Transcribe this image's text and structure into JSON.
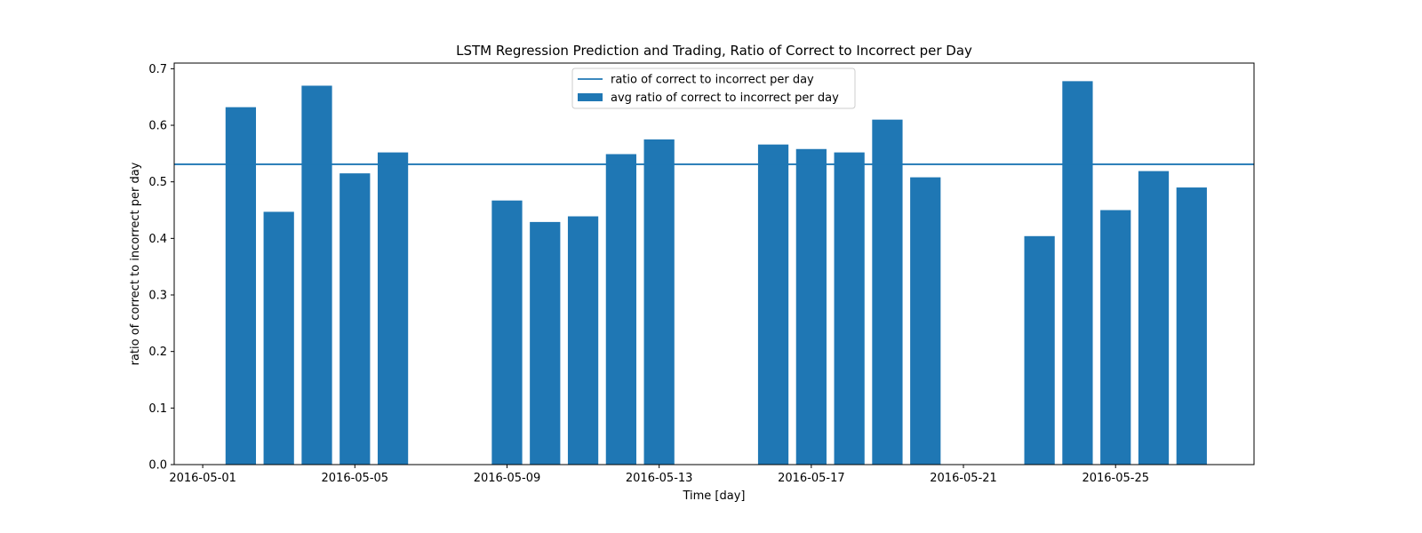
{
  "chart_data": {
    "type": "bar",
    "title": "LSTM Regression Prediction and Trading, Ratio of Correct to Incorrect per Day",
    "xlabel": "Time [day]",
    "ylabel": "ratio of correct to incorrect per day",
    "xlim": [
      "2016-04-30",
      "2016-05-29"
    ],
    "ylim": [
      0,
      0.71
    ],
    "xticks": [
      "2016-05-01",
      "2016-05-05",
      "2016-05-09",
      "2016-05-13",
      "2016-05-17",
      "2016-05-21",
      "2016-05-25"
    ],
    "yticks": [
      "0.0",
      "0.1",
      "0.2",
      "0.3",
      "0.4",
      "0.5",
      "0.6",
      "0.7"
    ],
    "grid": false,
    "legend_position": "upper center",
    "color": "#1f77b4",
    "series": [
      {
        "name": "avg ratio of correct to incorrect per day",
        "kind": "bar",
        "x": [
          "2016-05-02",
          "2016-05-03",
          "2016-05-04",
          "2016-05-05",
          "2016-05-06",
          "2016-05-09",
          "2016-05-10",
          "2016-05-11",
          "2016-05-12",
          "2016-05-13",
          "2016-05-16",
          "2016-05-17",
          "2016-05-18",
          "2016-05-19",
          "2016-05-20",
          "2016-05-23",
          "2016-05-24",
          "2016-05-25",
          "2016-05-26",
          "2016-05-27"
        ],
        "values": [
          0.632,
          0.447,
          0.67,
          0.515,
          0.552,
          0.467,
          0.429,
          0.439,
          0.549,
          0.575,
          0.566,
          0.558,
          0.552,
          0.61,
          0.508,
          0.404,
          0.678,
          0.45,
          0.519,
          0.49
        ]
      },
      {
        "name": "ratio of correct to incorrect per day",
        "kind": "hline",
        "value": 0.531
      }
    ]
  }
}
